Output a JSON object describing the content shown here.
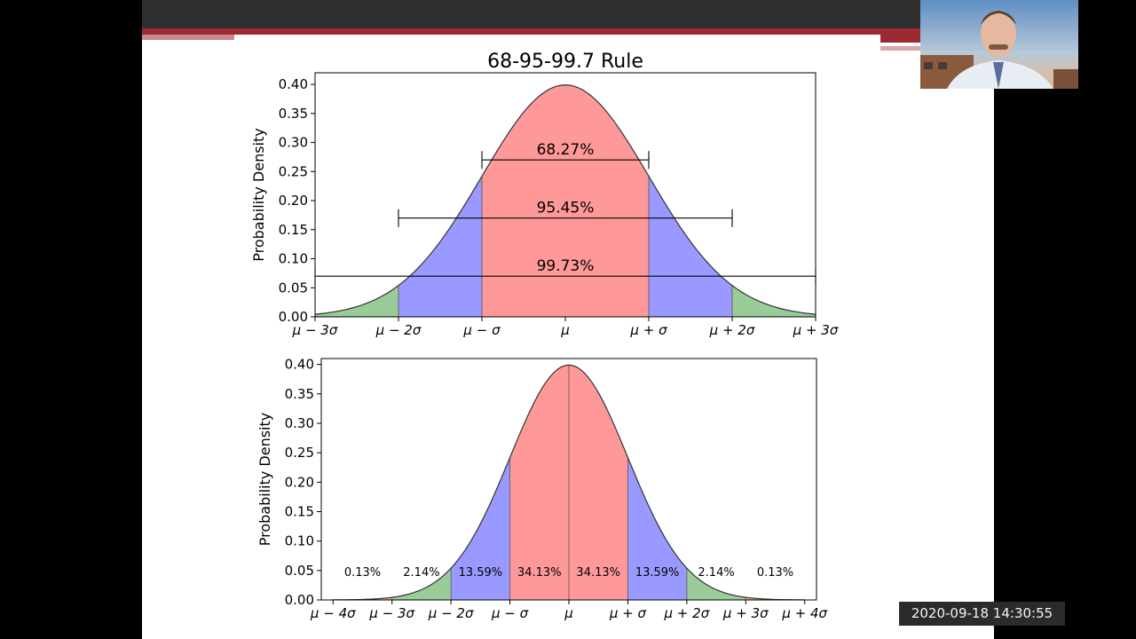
{
  "window": {
    "timestamp_date": "2020-09-18",
    "timestamp_time": "14:30:55"
  },
  "colors": {
    "background": "#000000",
    "slide_background": "#ffffff",
    "slide_topbar": "#2f2f2f",
    "accent_red": "#9b2a32",
    "band_1sigma": "#ff9999",
    "band_2sigma": "#9999ff",
    "band_3sigma": "#99cc99",
    "band_4sigma": "#ffb347",
    "curve": "#333333"
  },
  "chart_data": [
    {
      "type": "area",
      "title": "68-95-99.7 Rule",
      "ylabel": "Probability Density",
      "xlabel": "",
      "xlim": [
        -3.0,
        3.0
      ],
      "ylim": [
        0,
        0.42
      ],
      "yticks": [
        0.0,
        0.05,
        0.1,
        0.15,
        0.2,
        0.25,
        0.3,
        0.35,
        0.4
      ],
      "ytick_labels": [
        "0.00",
        "0.05",
        "0.10",
        "0.15",
        "0.20",
        "0.25",
        "0.30",
        "0.35",
        "0.40"
      ],
      "xticks": [
        -3,
        -2,
        -1,
        0,
        1,
        2,
        3
      ],
      "xtick_labels": [
        "μ − 3σ",
        "μ − 2σ",
        "μ − σ",
        "μ",
        "μ + σ",
        "μ + 2σ",
        "μ + 3σ"
      ],
      "curve": "normal pdf, mean 0, sd 1",
      "bands": [
        {
          "from": -3,
          "to": -2,
          "color": "#99cc99"
        },
        {
          "from": -2,
          "to": -1,
          "color": "#9999ff"
        },
        {
          "from": -1,
          "to": 1,
          "color": "#ff9999"
        },
        {
          "from": 1,
          "to": 2,
          "color": "#9999ff"
        },
        {
          "from": 2,
          "to": 3,
          "color": "#99cc99"
        }
      ],
      "intervals": [
        {
          "label": "68.27%",
          "from": -1,
          "to": 1,
          "y": 0.27
        },
        {
          "label": "95.45%",
          "from": -2,
          "to": 2,
          "y": 0.17
        },
        {
          "label": "99.73%",
          "from": -3,
          "to": 3,
          "y": 0.07
        }
      ],
      "grid": false
    },
    {
      "type": "area",
      "title": "",
      "ylabel": "Probability Density",
      "xlabel": "",
      "xlim": [
        -4.2,
        4.2
      ],
      "ylim": [
        0,
        0.41
      ],
      "yticks": [
        0.0,
        0.05,
        0.1,
        0.15,
        0.2,
        0.25,
        0.3,
        0.35,
        0.4
      ],
      "ytick_labels": [
        "0.00",
        "0.05",
        "0.10",
        "0.15",
        "0.20",
        "0.25",
        "0.30",
        "0.35",
        "0.40"
      ],
      "xticks": [
        -4,
        -3,
        -2,
        -1,
        0,
        1,
        2,
        3,
        4
      ],
      "xtick_labels": [
        "μ − 4σ",
        "μ − 3σ",
        "μ − 2σ",
        "μ − σ",
        "μ",
        "μ + σ",
        "μ + 2σ",
        "μ + 3σ",
        "μ + 4σ"
      ],
      "curve": "normal pdf, mean 0, sd 1",
      "bands": [
        {
          "from": -4,
          "to": -3,
          "color": "#ffb347"
        },
        {
          "from": -3,
          "to": -2,
          "color": "#99cc99"
        },
        {
          "from": -2,
          "to": -1,
          "color": "#9999ff"
        },
        {
          "from": -1,
          "to": 0,
          "color": "#ff9999"
        },
        {
          "from": 0,
          "to": 1,
          "color": "#ff9999"
        },
        {
          "from": 1,
          "to": 2,
          "color": "#9999ff"
        },
        {
          "from": 2,
          "to": 3,
          "color": "#99cc99"
        },
        {
          "from": 3,
          "to": 4,
          "color": "#ffb347"
        }
      ],
      "segment_labels": [
        {
          "label": "0.13%",
          "x": -3.5
        },
        {
          "label": "2.14%",
          "x": -2.5
        },
        {
          "label": "13.59%",
          "x": -1.5
        },
        {
          "label": "34.13%",
          "x": -0.5
        },
        {
          "label": "34.13%",
          "x": 0.5
        },
        {
          "label": "13.59%",
          "x": 1.5
        },
        {
          "label": "2.14%",
          "x": 2.5
        },
        {
          "label": "0.13%",
          "x": 3.5
        }
      ],
      "segment_label_y": 0.048,
      "grid": false
    }
  ]
}
